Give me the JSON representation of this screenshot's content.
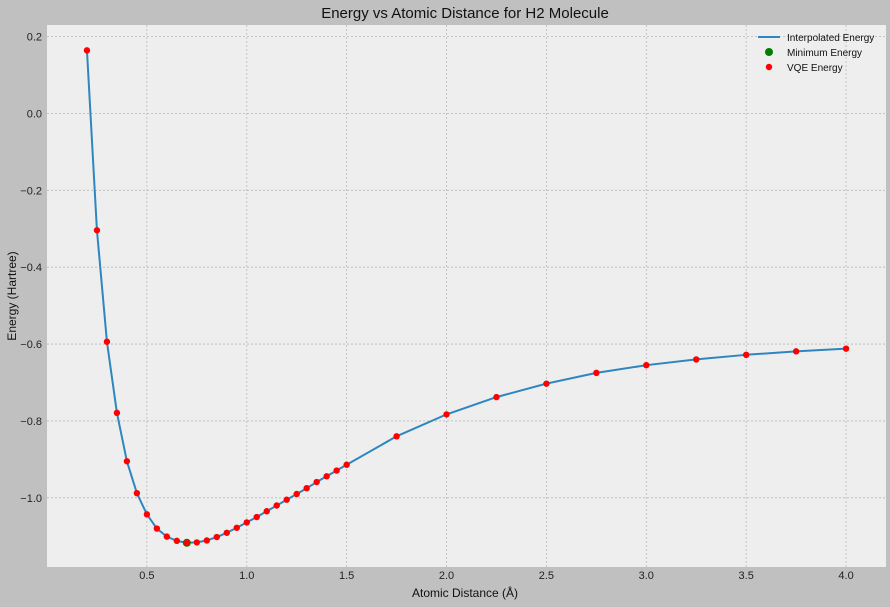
{
  "chart_data": {
    "type": "line",
    "title": "Energy vs Atomic Distance for H2 Molecule",
    "xlabel": "Atomic Distance (Å)",
    "ylabel": "Energy (Hartree)",
    "xlim": [
      0.0,
      4.2
    ],
    "ylim": [
      -1.18,
      0.23
    ],
    "xticks": [
      0.5,
      1.0,
      1.5,
      2.0,
      2.5,
      3.0,
      3.5,
      4.0
    ],
    "xtick_labels": [
      "0.5",
      "1.0",
      "1.5",
      "2.0",
      "2.5",
      "3.0",
      "3.5",
      "4.0"
    ],
    "yticks": [
      0.2,
      0.0,
      -0.2,
      -0.4,
      -0.6,
      -0.8,
      -1.0
    ],
    "ytick_labels": [
      "0.2",
      "0.0",
      "−0.2",
      "−0.4",
      "−0.6",
      "−0.8",
      "−1.0"
    ],
    "grid": true,
    "legend_position": "top-right",
    "colors": {
      "background": "#c0c0c0",
      "plot": "#eeeeee",
      "line": "#2e86c1",
      "vqe": "#ff0000",
      "min": "#007f00"
    },
    "series": [
      {
        "name": "Interpolated Energy",
        "kind": "line",
        "x": [
          0.2,
          0.25,
          0.3,
          0.35,
          0.4,
          0.45,
          0.5,
          0.55,
          0.6,
          0.65,
          0.7,
          0.75,
          0.8,
          0.85,
          0.9,
          0.95,
          1.0,
          1.05,
          1.1,
          1.15,
          1.2,
          1.25,
          1.3,
          1.35,
          1.4,
          1.45,
          1.5,
          1.75,
          2.0,
          2.25,
          2.5,
          2.75,
          3.0,
          3.25,
          3.5,
          3.75,
          4.0
        ],
        "y": [
          0.164,
          -0.304,
          -0.594,
          -0.779,
          -0.905,
          -0.988,
          -1.043,
          -1.08,
          -1.101,
          -1.112,
          -1.117,
          -1.116,
          -1.111,
          -1.102,
          -1.091,
          -1.078,
          -1.064,
          -1.05,
          -1.035,
          -1.02,
          -1.005,
          -0.99,
          -0.975,
          -0.959,
          -0.944,
          -0.929,
          -0.914,
          -0.84,
          -0.783,
          -0.738,
          -0.703,
          -0.675,
          -0.655,
          -0.64,
          -0.628,
          -0.619,
          -0.612
        ]
      },
      {
        "name": "Minimum Energy",
        "kind": "scatter",
        "x": [
          0.7
        ],
        "y": [
          -1.117
        ]
      },
      {
        "name": "VQE Energy",
        "kind": "scatter",
        "x": [
          0.2,
          0.25,
          0.3,
          0.35,
          0.4,
          0.45,
          0.5,
          0.55,
          0.6,
          0.65,
          0.7,
          0.75,
          0.8,
          0.85,
          0.9,
          0.95,
          1.0,
          1.05,
          1.1,
          1.15,
          1.2,
          1.25,
          1.3,
          1.35,
          1.4,
          1.45,
          1.5,
          1.75,
          2.0,
          2.25,
          2.5,
          2.75,
          3.0,
          3.25,
          3.5,
          3.75,
          4.0
        ],
        "y": [
          0.164,
          -0.304,
          -0.594,
          -0.779,
          -0.905,
          -0.988,
          -1.043,
          -1.08,
          -1.101,
          -1.112,
          -1.117,
          -1.116,
          -1.111,
          -1.102,
          -1.091,
          -1.078,
          -1.064,
          -1.05,
          -1.035,
          -1.02,
          -1.005,
          -0.99,
          -0.975,
          -0.959,
          -0.944,
          -0.929,
          -0.914,
          -0.84,
          -0.783,
          -0.738,
          -0.703,
          -0.675,
          -0.655,
          -0.64,
          -0.628,
          -0.619,
          -0.612
        ]
      }
    ]
  }
}
